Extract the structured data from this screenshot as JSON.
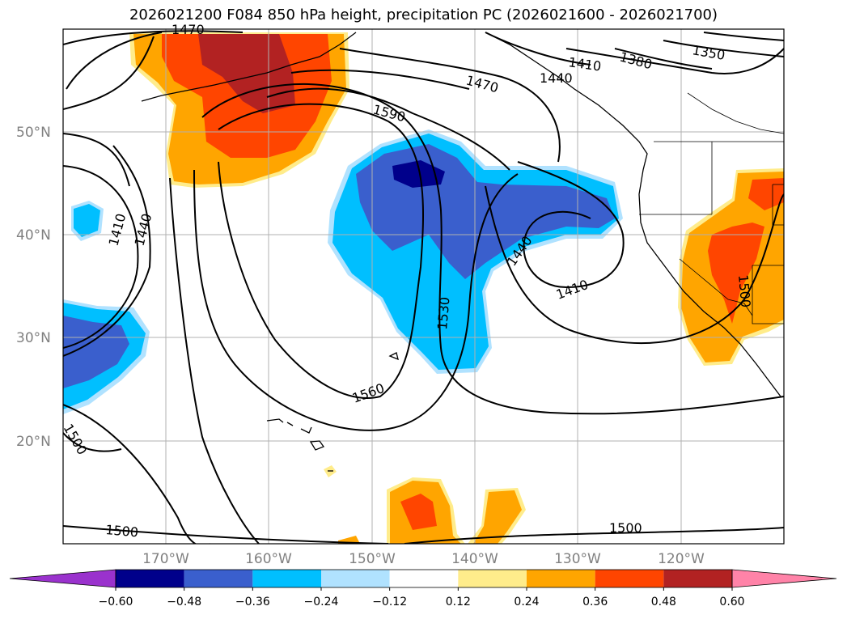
{
  "title": "2026021200 F084 850 hPa height, precipitation PC (2026021600 - 2026021700)",
  "lat_labels": [
    "50°N",
    "40°N",
    "30°N",
    "20°N"
  ],
  "lon_labels": [
    "170°W",
    "160°W",
    "150°W",
    "140°W",
    "130°W",
    "120°W"
  ],
  "contour_labels": [
    "1470",
    "1410",
    "1440",
    "1380",
    "1350",
    "1470",
    "1590",
    "1410",
    "1440",
    "1440",
    "1410",
    "1530",
    "1560",
    "1500",
    "1500",
    "1500",
    "1500"
  ],
  "colorbar": {
    "ticks": [
      "−0.60",
      "−0.48",
      "−0.36",
      "−0.24",
      "−0.12",
      "0.12",
      "0.24",
      "0.36",
      "0.48",
      "0.60"
    ],
    "colors": [
      "#9a32cd",
      "#00008b",
      "#3a5fcd",
      "#00bfff",
      "#b0e2ff",
      "#ffffff",
      "#ffec8b",
      "#ffa500",
      "#ff4500",
      "#b22222",
      "#ff83a8"
    ]
  }
}
